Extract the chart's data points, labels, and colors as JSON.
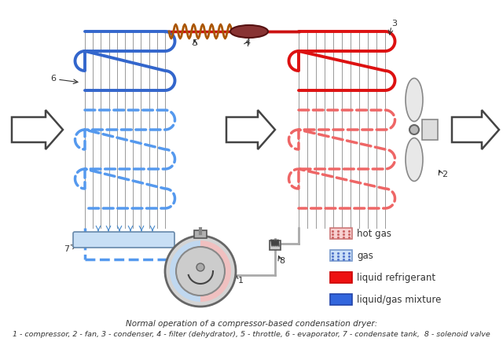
{
  "title_line1": "Normal operation of a compressor-based condensation dryer:",
  "title_line2": "1 - compressor, 2 - fan, 3 - condenser, 4 - filter (dehydrator), 5 - throttle, 6 - evaporator, 7 - condensate tank,  8 - solenoid valve",
  "legend_items": [
    "hot gas",
    "gas",
    "liquid refrigerant",
    "liquid/gas mixture"
  ],
  "legend_face": [
    "#f8d0d0",
    "#cce0f8",
    "#ee1111",
    "#3366dd"
  ],
  "legend_edge": [
    "#cc7777",
    "#7799cc",
    "#cc0000",
    "#2244aa"
  ],
  "background": "#ffffff",
  "evap_solid_color": "#3366cc",
  "evap_dash_color": "#5599ee",
  "cond_solid_color": "#dd1111",
  "cond_dash_color": "#ee6666",
  "pipe_red": "#cc1111",
  "pipe_gray": "#aaaaaa",
  "spring_color": "#aa5500",
  "filter_color": "#883333",
  "arrow_fill": "#ffffff",
  "arrow_edge": "#444444",
  "label_color": "#333333",
  "fin_color": "#999999"
}
